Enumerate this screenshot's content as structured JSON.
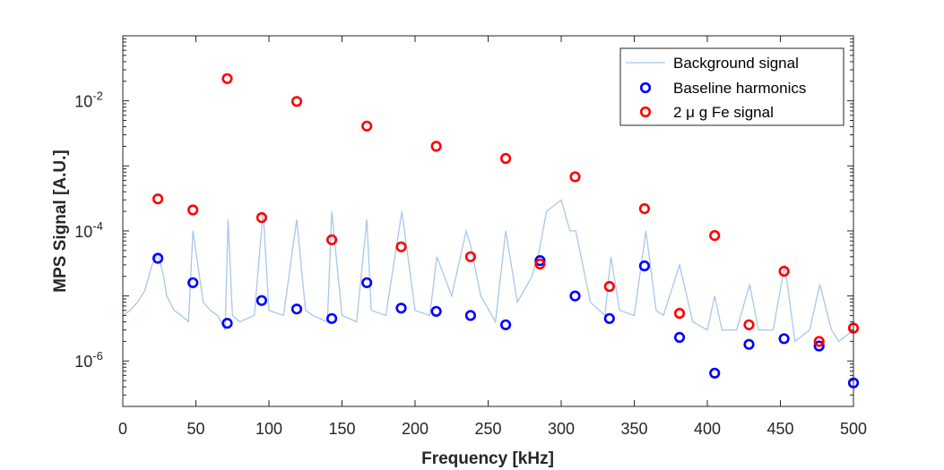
{
  "chart_data": {
    "type": "scatter",
    "xlabel": "Frequency [kHz]",
    "ylabel": "MPS Signal [A.U.]",
    "xlim": [
      0,
      500
    ],
    "ylim": [
      2e-07,
      0.1
    ],
    "yscale": "log",
    "xticks": [
      0,
      50,
      100,
      150,
      200,
      250,
      300,
      350,
      400,
      450,
      500
    ],
    "xtick_labels": [
      "0",
      "50",
      "100",
      "150",
      "200",
      "250",
      "300",
      "350",
      "400",
      "450",
      "500"
    ],
    "yticks": [
      1e-06,
      0.0001,
      0.01
    ],
    "ytick_labels": [
      {
        "base": "10",
        "exp": "-6"
      },
      {
        "base": "10",
        "exp": "-4"
      },
      {
        "base": "10",
        "exp": "-2"
      }
    ],
    "grid": false,
    "legend_position": "top-right",
    "colors": {
      "background": "#a9c7e8",
      "baseline": "#0000ff",
      "iron": "#ff0000",
      "axis": "#262626"
    },
    "series": [
      {
        "name": "Background signal",
        "style": "line",
        "x": [
          0,
          5,
          10,
          15,
          20,
          24,
          28,
          30,
          35,
          40,
          45,
          48,
          55,
          60,
          65,
          70,
          72,
          75,
          80,
          90,
          96,
          100,
          110,
          119,
          125,
          130,
          140,
          143,
          150,
          160,
          167,
          170,
          180,
          191,
          200,
          210,
          215,
          225,
          235,
          238,
          245,
          255,
          262,
          270,
          280,
          285,
          290,
          300,
          306,
          310,
          320,
          330,
          334,
          340,
          350,
          358,
          365,
          370,
          381,
          390,
          400,
          405,
          410,
          420,
          429,
          435,
          445,
          453,
          460,
          470,
          477,
          485,
          490,
          500
        ],
        "y": [
          5e-06,
          6e-06,
          8e-06,
          1.2e-05,
          3e-05,
          4.5e-05,
          2e-05,
          1e-05,
          6e-06,
          5e-06,
          4e-06,
          0.0001,
          8e-06,
          6e-06,
          5e-06,
          3e-06,
          0.00015,
          5e-06,
          4e-06,
          5e-06,
          0.0002,
          6e-06,
          5e-06,
          0.00015,
          6e-06,
          5e-06,
          4e-06,
          0.0002,
          5e-06,
          4e-06,
          0.00015,
          6e-06,
          5e-06,
          0.0002,
          6e-06,
          5e-06,
          4e-05,
          1e-05,
          0.0001,
          6e-05,
          1e-05,
          4e-06,
          0.0001,
          8e-06,
          2e-05,
          5e-05,
          0.0002,
          0.0003,
          0.0001,
          0.0001,
          8e-06,
          5e-06,
          4e-05,
          6e-06,
          5e-06,
          0.0001,
          6e-06,
          5e-06,
          3e-05,
          4e-06,
          3e-06,
          1e-05,
          3e-06,
          3e-06,
          1.5e-05,
          3e-06,
          3e-06,
          3e-05,
          2e-06,
          3e-06,
          1.5e-05,
          3e-06,
          2e-06,
          3e-06
        ]
      },
      {
        "name": "Baseline harmonics",
        "style": "marker",
        "x": [
          24,
          48,
          71.5,
          95,
          119,
          143,
          167,
          190.5,
          214.5,
          238,
          262,
          285.5,
          309.5,
          333,
          357,
          381,
          405,
          428.5,
          452.5,
          476.5,
          500
        ],
        "y": [
          3.8e-05,
          1.6e-05,
          3.8e-06,
          8.5e-06,
          6.3e-06,
          4.5e-06,
          1.6e-05,
          6.5e-06,
          5.8e-06,
          5e-06,
          3.6e-06,
          3.5e-05,
          1e-05,
          4.5e-06,
          2.9e-05,
          2.3e-06,
          6.5e-07,
          1.8e-06,
          2.2e-06,
          1.7e-06,
          4.6e-07
        ]
      },
      {
        "name": "2 μ g Fe signal",
        "style": "marker",
        "x": [
          24,
          48,
          71.5,
          95,
          119,
          143,
          167,
          190.5,
          214.5,
          238,
          262,
          285.5,
          309.5,
          333,
          357,
          381,
          405,
          428.5,
          452.5,
          476.5,
          500
        ],
        "y": [
          0.00031,
          0.00021,
          0.022,
          0.00016,
          0.0098,
          7.3e-05,
          0.0041,
          5.7e-05,
          0.002,
          4e-05,
          0.0013,
          3.1e-05,
          0.00068,
          1.4e-05,
          0.00022,
          5.4e-06,
          8.5e-05,
          3.6e-06,
          2.4e-05,
          2e-06,
          3.2e-06
        ]
      }
    ],
    "legend": {
      "entries": [
        "Background signal",
        "Baseline harmonics",
        "2 μ g Fe signal"
      ]
    }
  }
}
